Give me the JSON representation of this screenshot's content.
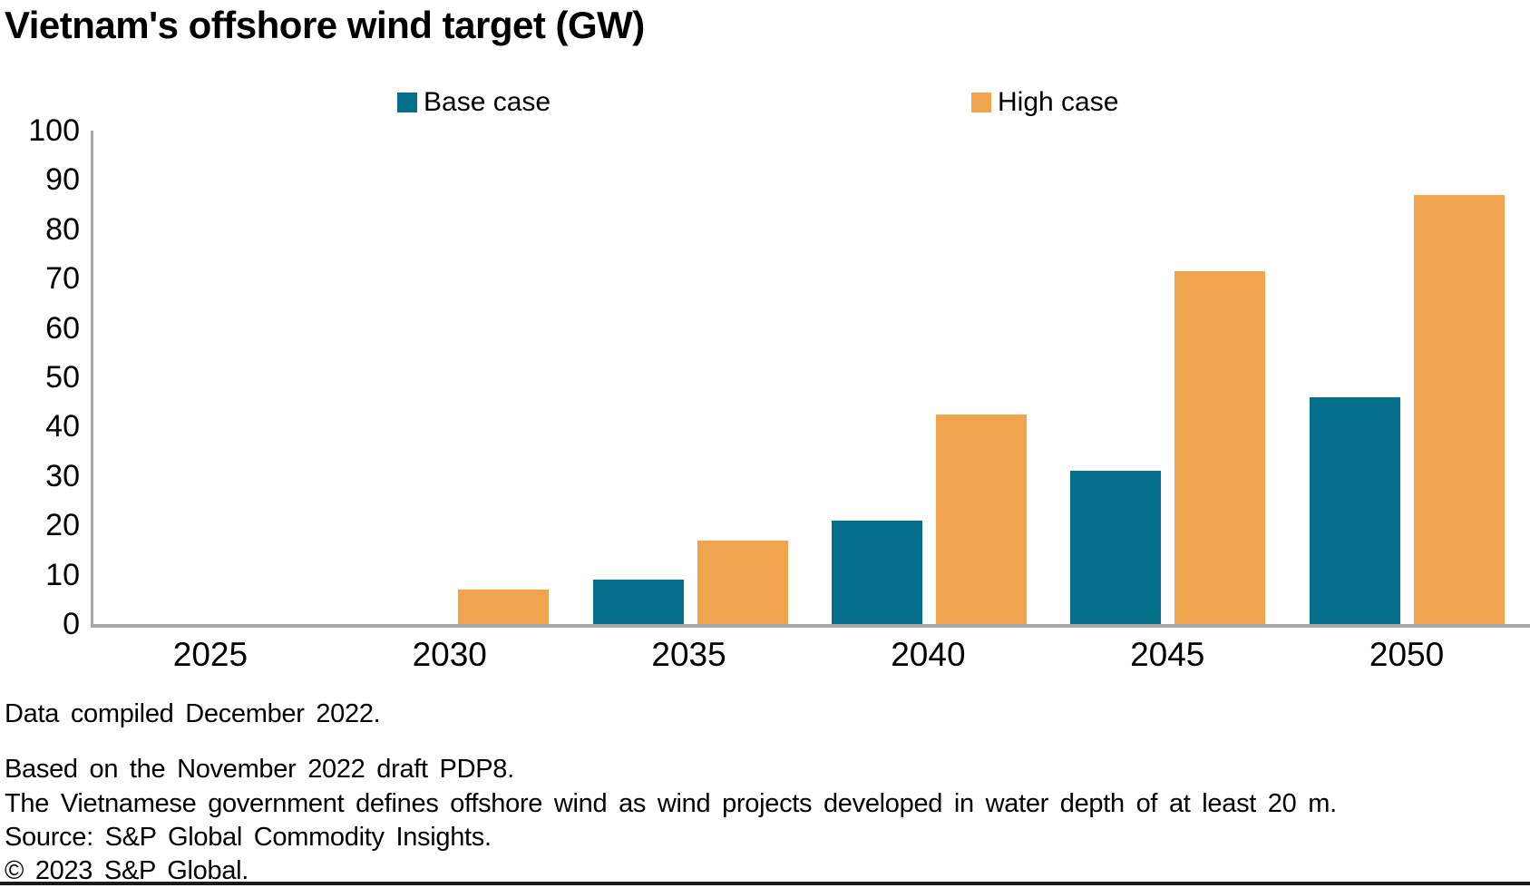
{
  "title": "Vietnam's offshore wind target (GW)",
  "chart_data": {
    "type": "bar",
    "categories": [
      "2025",
      "2030",
      "2035",
      "2040",
      "2045",
      "2050"
    ],
    "series": [
      {
        "name": "Base case",
        "color": "#04708c",
        "values": [
          0,
          0,
          9,
          21,
          31,
          46
        ]
      },
      {
        "name": "High case",
        "color": "#f1a44e",
        "values": [
          0,
          7,
          17,
          42.5,
          71.5,
          87
        ]
      }
    ],
    "title": "Vietnam's offshore wind target (GW)",
    "xlabel": "",
    "ylabel": "",
    "ylim": [
      0,
      100
    ],
    "yticks": [
      0,
      10,
      20,
      30,
      40,
      50,
      60,
      70,
      80,
      90,
      100
    ],
    "grid": false,
    "legend_position": "top",
    "axis_color": "#a8a8a8"
  },
  "footer": {
    "compiled": "Data compiled December 2022.",
    "notes": [
      "Based on the November 2022 draft PDP8.",
      "The Vietnamese government defines offshore wind as wind projects developed in water depth of at least 20 m."
    ],
    "source": "Source: S&P Global Commodity Insights.",
    "copyright": "© 2023 S&P Global."
  }
}
